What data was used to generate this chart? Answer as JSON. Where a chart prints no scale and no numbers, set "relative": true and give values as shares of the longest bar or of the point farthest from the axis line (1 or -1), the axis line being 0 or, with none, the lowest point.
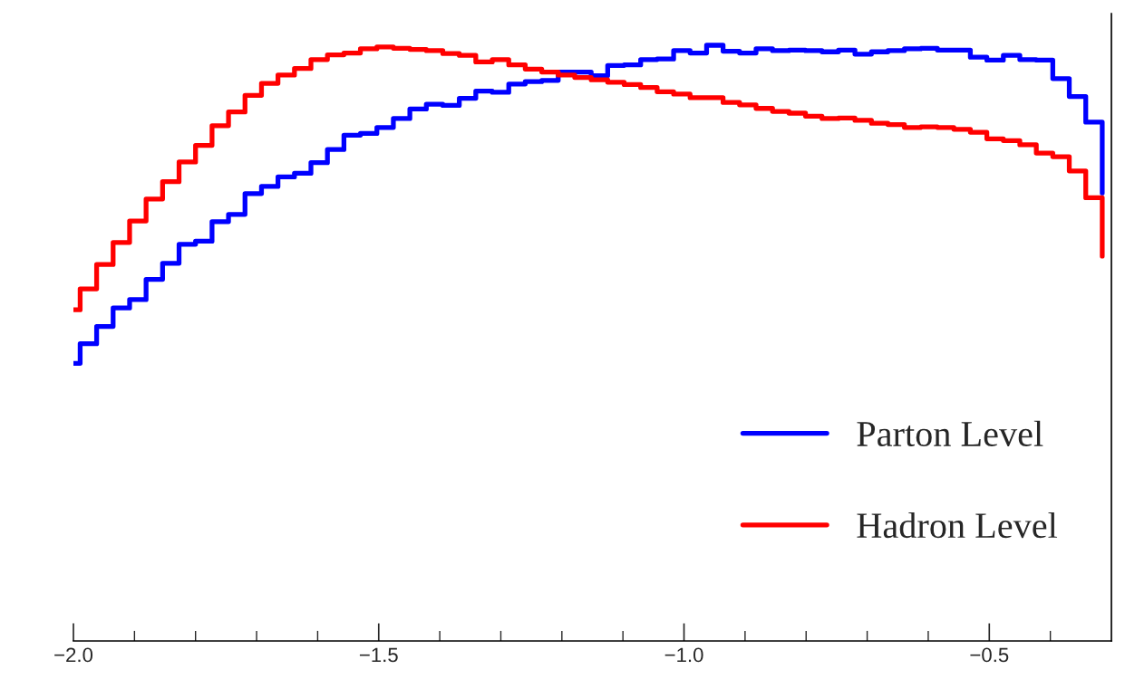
{
  "chart_data": {
    "type": "step",
    "relative": true,
    "x": [
      -2.0,
      -1.989,
      -1.962,
      -1.935,
      -1.908,
      -1.881,
      -1.854,
      -1.827,
      -1.8,
      -1.773,
      -1.746,
      -1.719,
      -1.692,
      -1.665,
      -1.638,
      -1.611,
      -1.584,
      -1.557,
      -1.53,
      -1.503,
      -1.476,
      -1.449,
      -1.422,
      -1.395,
      -1.368,
      -1.341,
      -1.314,
      -1.287,
      -1.26,
      -1.233,
      -1.206,
      -1.179,
      -1.152,
      -1.125,
      -1.098,
      -1.071,
      -1.044,
      -1.017,
      -0.99,
      -0.963,
      -0.936,
      -0.909,
      -0.882,
      -0.855,
      -0.828,
      -0.801,
      -0.774,
      -0.747,
      -0.72,
      -0.693,
      -0.666,
      -0.639,
      -0.612,
      -0.585,
      -0.558,
      -0.531,
      -0.504,
      -0.477,
      -0.45,
      -0.423,
      -0.396,
      -0.369,
      -0.342,
      -0.315
    ],
    "series": [
      {
        "name": "Parton Level",
        "color": "#0000ff",
        "values": [
          0.466,
          0.499,
          0.528,
          0.559,
          0.573,
          0.607,
          0.634,
          0.666,
          0.671,
          0.704,
          0.716,
          0.751,
          0.763,
          0.779,
          0.785,
          0.803,
          0.825,
          0.849,
          0.852,
          0.862,
          0.877,
          0.893,
          0.901,
          0.899,
          0.911,
          0.923,
          0.921,
          0.935,
          0.939,
          0.941,
          0.955,
          0.955,
          0.949,
          0.966,
          0.967,
          0.976,
          0.977,
          0.991,
          0.987,
          1.0,
          0.99,
          0.987,
          0.994,
          0.991,
          0.992,
          0.991,
          0.989,
          0.992,
          0.985,
          0.989,
          0.991,
          0.994,
          0.995,
          0.992,
          0.992,
          0.98,
          0.975,
          0.983,
          0.976,
          0.975,
          0.944,
          0.914,
          0.871,
          0.752
        ]
      },
      {
        "name": "Hadron Level",
        "color": "#ff0000",
        "values": [
          0.556,
          0.591,
          0.632,
          0.669,
          0.705,
          0.742,
          0.771,
          0.804,
          0.832,
          0.865,
          0.888,
          0.916,
          0.936,
          0.95,
          0.961,
          0.976,
          0.984,
          0.987,
          0.994,
          0.997,
          0.995,
          0.993,
          0.991,
          0.986,
          0.983,
          0.972,
          0.976,
          0.967,
          0.96,
          0.955,
          0.95,
          0.946,
          0.942,
          0.938,
          0.934,
          0.929,
          0.922,
          0.918,
          0.912,
          0.912,
          0.904,
          0.9,
          0.894,
          0.889,
          0.886,
          0.881,
          0.877,
          0.878,
          0.874,
          0.869,
          0.867,
          0.862,
          0.863,
          0.862,
          0.859,
          0.854,
          0.843,
          0.84,
          0.833,
          0.819,
          0.813,
          0.789,
          0.744,
          0.646
        ]
      }
    ],
    "xlim": [
      -2.0,
      -0.3
    ],
    "xticks": [
      {
        "value": -2.0,
        "label": "−2.0"
      },
      {
        "value": -1.9,
        "label": null
      },
      {
        "value": -1.8,
        "label": null
      },
      {
        "value": -1.7,
        "label": null
      },
      {
        "value": -1.6,
        "label": null
      },
      {
        "value": -1.5,
        "label": "−1.5"
      },
      {
        "value": -1.4,
        "label": null
      },
      {
        "value": -1.3,
        "label": null
      },
      {
        "value": -1.2,
        "label": null
      },
      {
        "value": -1.1,
        "label": null
      },
      {
        "value": -1.0,
        "label": "−1.0"
      },
      {
        "value": -0.9,
        "label": null
      },
      {
        "value": -0.8,
        "label": null
      },
      {
        "value": -0.7,
        "label": null
      },
      {
        "value": -0.6,
        "label": null
      },
      {
        "value": -0.5,
        "label": "−0.5"
      },
      {
        "value": -0.4,
        "label": null
      }
    ],
    "legend": "lower right"
  }
}
